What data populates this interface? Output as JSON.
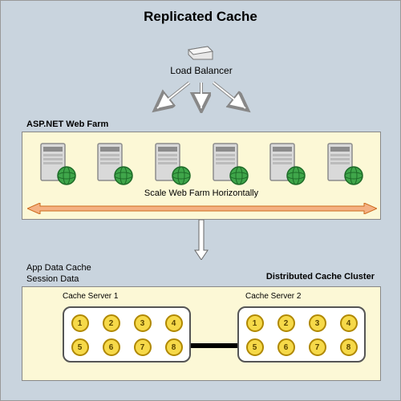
{
  "title": "Replicated Cache",
  "loadBalancer": {
    "label": "Load Balancer"
  },
  "webFarm": {
    "title": "ASP.NET Web Farm",
    "scaleLabel": "Scale Web Farm Horizontally",
    "serverCount": 6,
    "boxBg": "#fcf8d6",
    "arrowColor": "#e6893e"
  },
  "appData": {
    "line1": "App Data Cache",
    "line2": "Session Data"
  },
  "cluster": {
    "title": "Distributed Cache Cluster",
    "boxBg": "#fcf8d6",
    "servers": [
      {
        "name": "Cache Server 1",
        "row1": [
          "1",
          "2",
          "3",
          "4"
        ],
        "row2": [
          "5",
          "6",
          "7",
          "8"
        ]
      },
      {
        "name": "Cache Server 2",
        "row1": [
          "1",
          "2",
          "3",
          "4"
        ],
        "row2": [
          "5",
          "6",
          "7",
          "8"
        ]
      }
    ],
    "dotBg": "#f6d949",
    "dotBorder": "#b08800"
  },
  "colors": {
    "pageBg": "#c9d4de",
    "serverBody": "#d9d9d9",
    "serverDark": "#8c8c8c",
    "globe": "#3fa64a"
  }
}
